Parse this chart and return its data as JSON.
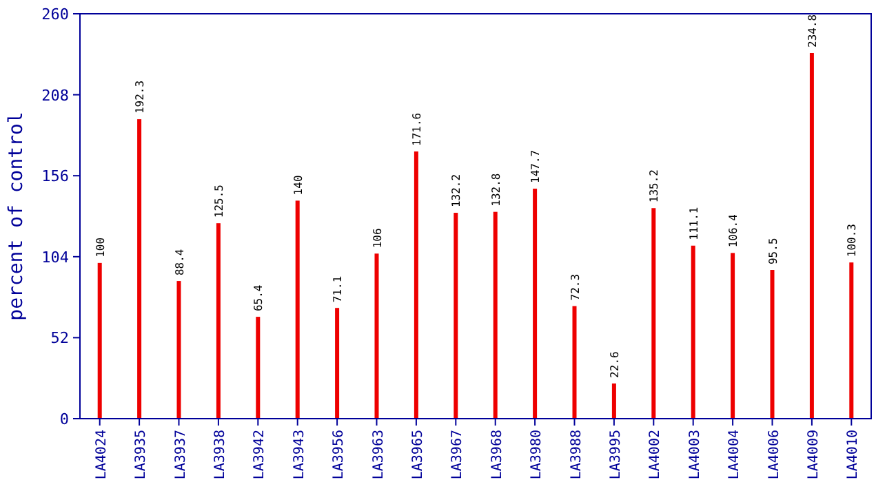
{
  "chart_data": {
    "type": "bar",
    "ylabel": "percent of control",
    "categories": [
      "LA4024",
      "LA3935",
      "LA3937",
      "LA3938",
      "LA3942",
      "LA3943",
      "LA3956",
      "LA3963",
      "LA3965",
      "LA3967",
      "LA3968",
      "LA3980",
      "LA3988",
      "LA3995",
      "LA4002",
      "LA4003",
      "LA4004",
      "LA4006",
      "LA4009",
      "LA4010"
    ],
    "values": [
      100,
      192.3,
      88.4,
      125.5,
      65.4,
      140,
      71.1,
      106,
      171.6,
      132.2,
      132.8,
      147.7,
      72.3,
      22.6,
      135.2,
      111.1,
      106.4,
      95.5,
      234.8,
      100.3
    ],
    "color": "#ee0000",
    "ylim": [
      0,
      260
    ],
    "yticks": [
      0,
      52,
      104,
      156,
      208,
      260
    ],
    "data_labels": true
  }
}
